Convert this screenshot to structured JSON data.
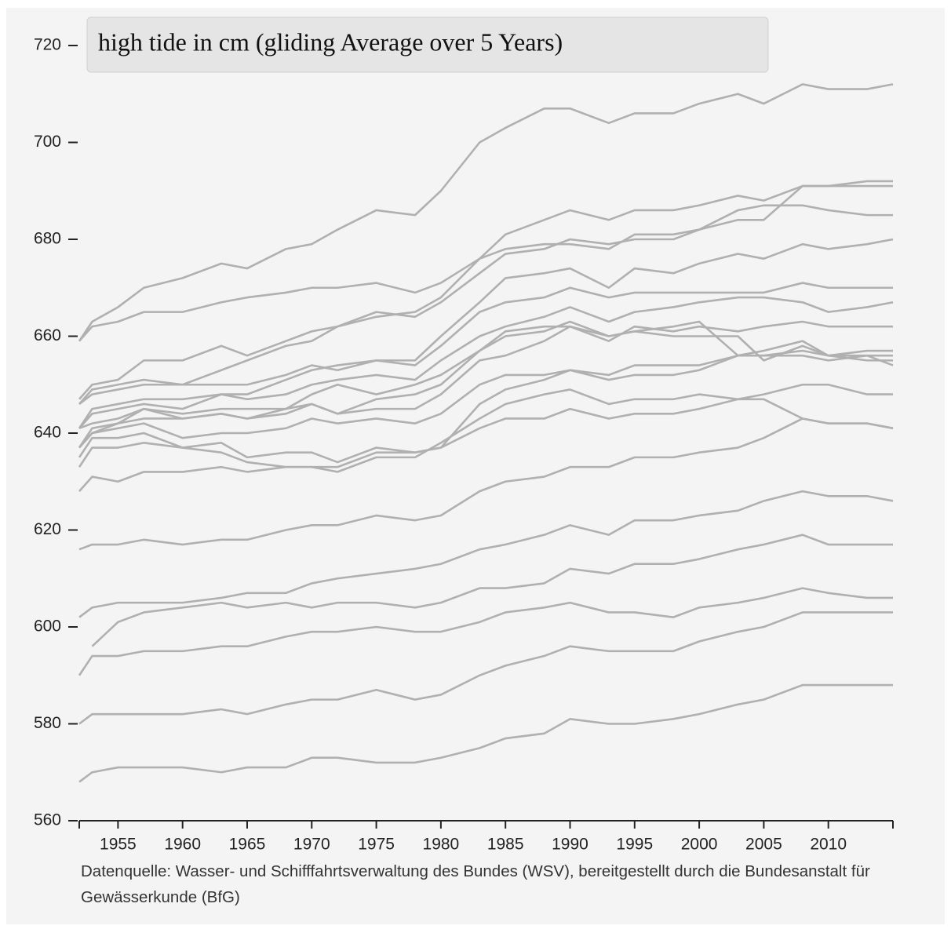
{
  "chart_data": {
    "type": "line",
    "title": "high tide in cm (gliding Average over 5 Years)",
    "source": "Datenquelle: Wasser- und Schifffahrtsverwaltung des Bundes (WSV), bereitgestellt durch die Bundesanstalt für Gewässerkunde (BfG)",
    "color": "#b0b0b0",
    "x": [
      1952,
      1953,
      1955,
      1957,
      1960,
      1963,
      1965,
      1968,
      1970,
      1972,
      1975,
      1978,
      1980,
      1983,
      1985,
      1988,
      1990,
      1993,
      1995,
      1998,
      2000,
      2003,
      2005,
      2008,
      2010,
      2013,
      2015
    ],
    "xlim": [
      1952,
      2015
    ],
    "xticks": [
      1955,
      1960,
      1965,
      1970,
      1975,
      1980,
      1985,
      1990,
      1995,
      2000,
      2005,
      2010
    ],
    "ylim": [
      560,
      720
    ],
    "yticks": [
      560,
      580,
      600,
      620,
      640,
      660,
      680,
      700,
      720
    ],
    "series": [
      {
        "values": [
          659,
          663,
          666,
          670,
          672,
          675,
          674,
          678,
          679,
          682,
          686,
          685,
          690,
          700,
          703,
          707,
          707,
          704,
          706,
          706,
          708,
          710,
          708,
          712,
          711,
          711,
          712
        ]
      },
      {
        "values": [
          659,
          662,
          663,
          665,
          665,
          667,
          668,
          669,
          670,
          670,
          671,
          669,
          671,
          676,
          681,
          684,
          686,
          684,
          686,
          686,
          687,
          689,
          688,
          691,
          691,
          692,
          692
        ]
      },
      {
        "values": [
          647,
          650,
          651,
          655,
          655,
          658,
          656,
          659,
          661,
          662,
          665,
          664,
          667,
          673,
          677,
          678,
          680,
          679,
          680,
          680,
          682,
          684,
          684,
          691,
          691,
          691,
          691
        ]
      },
      {
        "values": [
          646,
          649,
          650,
          651,
          650,
          653,
          655,
          658,
          659,
          662,
          664,
          665,
          668,
          676,
          678,
          679,
          679,
          678,
          681,
          681,
          682,
          686,
          687,
          687,
          686,
          685,
          685
        ]
      },
      {
        "values": [
          646,
          648,
          649,
          650,
          650,
          650,
          650,
          652,
          654,
          653,
          655,
          655,
          660,
          667,
          672,
          673,
          674,
          670,
          674,
          673,
          675,
          677,
          676,
          679,
          678,
          679,
          680
        ]
      },
      {
        "values": [
          641,
          645,
          646,
          647,
          647,
          648,
          648,
          651,
          653,
          654,
          655,
          654,
          658,
          665,
          667,
          668,
          670,
          668,
          669,
          669,
          669,
          669,
          669,
          671,
          670,
          670,
          670
        ]
      },
      {
        "values": [
          641,
          644,
          645,
          646,
          645,
          648,
          647,
          648,
          650,
          651,
          652,
          651,
          655,
          660,
          662,
          664,
          666,
          663,
          665,
          666,
          667,
          668,
          668,
          667,
          665,
          666,
          667
        ]
      },
      {
        "values": [
          637,
          641,
          642,
          645,
          644,
          645,
          645,
          645,
          648,
          650,
          648,
          650,
          652,
          657,
          661,
          662,
          662,
          659,
          662,
          661,
          662,
          661,
          662,
          663,
          662,
          662,
          662
        ]
      },
      {
        "values": [
          637,
          640,
          642,
          643,
          643,
          644,
          643,
          644,
          646,
          644,
          647,
          648,
          650,
          657,
          660,
          661,
          663,
          660,
          661,
          660,
          660,
          660,
          655,
          658,
          656,
          657,
          657
        ]
      },
      {
        "values": [
          635,
          639,
          639,
          640,
          637,
          638,
          635,
          636,
          636,
          634,
          637,
          636,
          637,
          646,
          649,
          651,
          653,
          651,
          652,
          652,
          653,
          656,
          656,
          657,
          656,
          656,
          656
        ]
      },
      {
        "values": [
          641,
          642,
          643,
          645,
          643,
          644,
          643,
          645,
          646,
          644,
          645,
          645,
          648,
          655,
          656,
          659,
          662,
          660,
          661,
          662,
          663,
          656,
          657,
          659,
          656,
          655,
          655
        ]
      },
      {
        "values": [
          637,
          640,
          641,
          642,
          639,
          640,
          640,
          641,
          643,
          642,
          643,
          642,
          644,
          650,
          652,
          652,
          653,
          652,
          654,
          654,
          654,
          656,
          656,
          656,
          655,
          656,
          654
        ]
      },
      {
        "values": [
          633,
          637,
          637,
          638,
          637,
          636,
          634,
          633,
          633,
          632,
          635,
          635,
          638,
          643,
          646,
          648,
          649,
          646,
          647,
          647,
          648,
          647,
          648,
          650,
          650,
          648,
          648
        ]
      },
      {
        "values": [
          628,
          631,
          630,
          632,
          632,
          633,
          632,
          633,
          633,
          633,
          636,
          636,
          637,
          641,
          643,
          643,
          645,
          643,
          644,
          644,
          645,
          647,
          647,
          643,
          642,
          642,
          641
        ]
      },
      {
        "values": [
          616,
          617,
          617,
          618,
          617,
          618,
          618,
          620,
          621,
          621,
          623,
          622,
          623,
          628,
          630,
          631,
          633,
          633,
          635,
          635,
          636,
          637,
          639,
          643,
          642,
          642,
          641
        ]
      },
      {
        "values": [
          602,
          604,
          605,
          605,
          605,
          606,
          607,
          607,
          609,
          610,
          611,
          612,
          613,
          616,
          617,
          619,
          621,
          619,
          622,
          622,
          623,
          624,
          626,
          628,
          627,
          627,
          626
        ]
      },
      {
        "values": [
          null,
          596,
          601,
          603,
          604,
          605,
          604,
          605,
          604,
          605,
          605,
          604,
          605,
          608,
          608,
          609,
          612,
          611,
          613,
          613,
          614,
          616,
          617,
          619,
          617,
          617,
          617
        ]
      },
      {
        "values": [
          590,
          594,
          594,
          595,
          595,
          596,
          596,
          598,
          599,
          599,
          600,
          599,
          599,
          601,
          603,
          604,
          605,
          603,
          603,
          602,
          604,
          605,
          606,
          608,
          607,
          606,
          606
        ]
      },
      {
        "values": [
          580,
          582,
          582,
          582,
          582,
          583,
          582,
          584,
          585,
          585,
          587,
          585,
          586,
          590,
          592,
          594,
          596,
          595,
          595,
          595,
          597,
          599,
          600,
          603,
          603,
          603,
          603
        ]
      },
      {
        "values": [
          568,
          570,
          571,
          571,
          571,
          570,
          571,
          571,
          573,
          573,
          572,
          572,
          573,
          575,
          577,
          578,
          581,
          580,
          580,
          581,
          582,
          584,
          585,
          588,
          588,
          588,
          588
        ]
      }
    ]
  }
}
